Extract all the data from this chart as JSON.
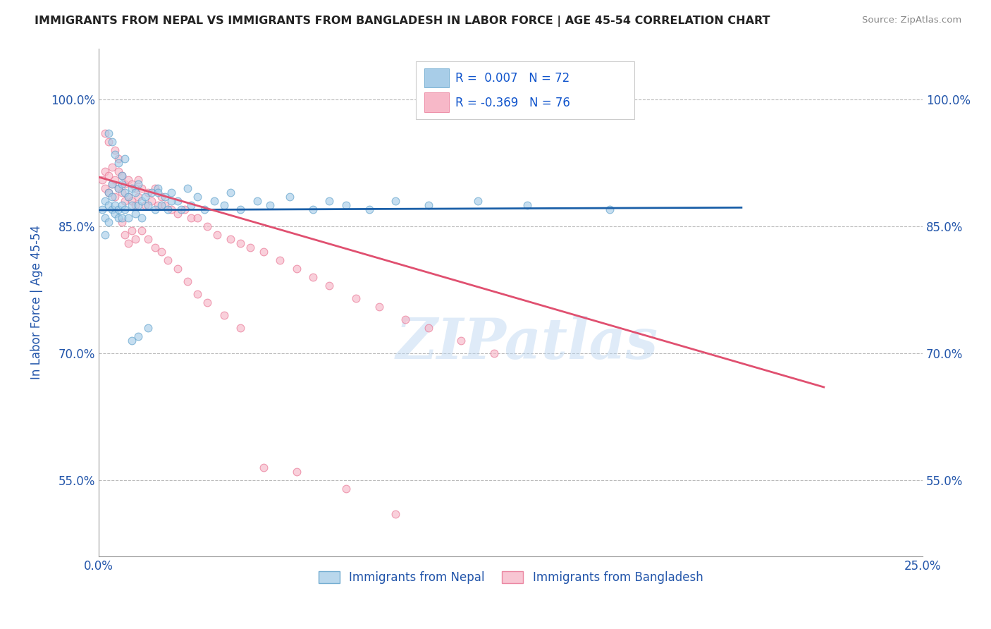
{
  "title": "IMMIGRANTS FROM NEPAL VS IMMIGRANTS FROM BANGLADESH IN LABOR FORCE | AGE 45-54 CORRELATION CHART",
  "source": "Source: ZipAtlas.com",
  "ylabel": "In Labor Force | Age 45-54",
  "xlim": [
    0.0,
    0.25
  ],
  "ylim": [
    0.46,
    1.06
  ],
  "ytick_positions": [
    0.55,
    0.7,
    0.85,
    1.0
  ],
  "ytick_labels": [
    "55.0%",
    "70.0%",
    "85.0%",
    "100.0%"
  ],
  "nepal_color": "#a8cde8",
  "nepal_edge": "#5a9ec9",
  "bangladesh_color": "#f7b8c8",
  "bangladesh_edge": "#e87090",
  "nepal_R": 0.007,
  "nepal_N": 72,
  "bangladesh_R": -0.369,
  "bangladesh_N": 76,
  "nepal_trend_x": [
    0.0,
    0.195
  ],
  "nepal_trend_y": [
    0.869,
    0.872
  ],
  "bangladesh_trend_x": [
    0.0,
    0.22
  ],
  "bangladesh_trend_y": [
    0.908,
    0.66
  ],
  "legend_nepal": "Immigrants from Nepal",
  "legend_bangladesh": "Immigrants from Bangladesh",
  "watermark": "ZIPatlas",
  "background_color": "#ffffff",
  "grid_color": "#bbbbbb",
  "title_color": "#222222",
  "axis_label_color": "#2255aa",
  "r_value_color": "#1155cc",
  "nepal_scatter_x": [
    0.001,
    0.002,
    0.002,
    0.003,
    0.003,
    0.003,
    0.004,
    0.004,
    0.004,
    0.005,
    0.005,
    0.006,
    0.006,
    0.006,
    0.007,
    0.007,
    0.007,
    0.008,
    0.008,
    0.009,
    0.009,
    0.01,
    0.01,
    0.011,
    0.011,
    0.012,
    0.012,
    0.013,
    0.013,
    0.014,
    0.015,
    0.016,
    0.017,
    0.018,
    0.019,
    0.02,
    0.021,
    0.022,
    0.024,
    0.025,
    0.027,
    0.028,
    0.03,
    0.032,
    0.035,
    0.038,
    0.04,
    0.043,
    0.048,
    0.052,
    0.058,
    0.065,
    0.07,
    0.075,
    0.082,
    0.09,
    0.1,
    0.115,
    0.13,
    0.155,
    0.002,
    0.003,
    0.004,
    0.005,
    0.006,
    0.007,
    0.008,
    0.01,
    0.012,
    0.015,
    0.018,
    0.022
  ],
  "nepal_scatter_y": [
    0.87,
    0.88,
    0.86,
    0.89,
    0.875,
    0.855,
    0.9,
    0.87,
    0.885,
    0.875,
    0.865,
    0.895,
    0.87,
    0.86,
    0.9,
    0.875,
    0.86,
    0.89,
    0.87,
    0.885,
    0.86,
    0.895,
    0.875,
    0.89,
    0.865,
    0.9,
    0.875,
    0.88,
    0.86,
    0.885,
    0.875,
    0.89,
    0.87,
    0.895,
    0.875,
    0.885,
    0.87,
    0.89,
    0.88,
    0.87,
    0.895,
    0.875,
    0.885,
    0.87,
    0.88,
    0.875,
    0.89,
    0.87,
    0.88,
    0.875,
    0.885,
    0.87,
    0.88,
    0.875,
    0.87,
    0.88,
    0.875,
    0.88,
    0.875,
    0.87,
    0.84,
    0.96,
    0.95,
    0.935,
    0.925,
    0.91,
    0.93,
    0.715,
    0.72,
    0.73,
    0.89,
    0.88
  ],
  "bangladesh_scatter_x": [
    0.001,
    0.002,
    0.002,
    0.003,
    0.003,
    0.004,
    0.004,
    0.005,
    0.005,
    0.006,
    0.006,
    0.007,
    0.007,
    0.008,
    0.008,
    0.009,
    0.009,
    0.01,
    0.01,
    0.011,
    0.011,
    0.012,
    0.012,
    0.013,
    0.014,
    0.015,
    0.016,
    0.017,
    0.018,
    0.019,
    0.02,
    0.022,
    0.024,
    0.026,
    0.028,
    0.03,
    0.033,
    0.036,
    0.04,
    0.043,
    0.046,
    0.05,
    0.055,
    0.06,
    0.065,
    0.07,
    0.078,
    0.085,
    0.093,
    0.1,
    0.11,
    0.12,
    0.002,
    0.003,
    0.005,
    0.006,
    0.007,
    0.008,
    0.009,
    0.01,
    0.011,
    0.013,
    0.015,
    0.017,
    0.019,
    0.021,
    0.024,
    0.027,
    0.03,
    0.033,
    0.038,
    0.043,
    0.05,
    0.06,
    0.075,
    0.09
  ],
  "bangladesh_scatter_y": [
    0.905,
    0.915,
    0.895,
    0.91,
    0.89,
    0.92,
    0.9,
    0.905,
    0.885,
    0.915,
    0.895,
    0.91,
    0.89,
    0.9,
    0.88,
    0.905,
    0.885,
    0.9,
    0.88,
    0.895,
    0.875,
    0.905,
    0.885,
    0.895,
    0.875,
    0.89,
    0.88,
    0.895,
    0.875,
    0.885,
    0.875,
    0.87,
    0.865,
    0.87,
    0.86,
    0.86,
    0.85,
    0.84,
    0.835,
    0.83,
    0.825,
    0.82,
    0.81,
    0.8,
    0.79,
    0.78,
    0.765,
    0.755,
    0.74,
    0.73,
    0.715,
    0.7,
    0.96,
    0.95,
    0.94,
    0.93,
    0.855,
    0.84,
    0.83,
    0.845,
    0.835,
    0.845,
    0.835,
    0.825,
    0.82,
    0.81,
    0.8,
    0.785,
    0.77,
    0.76,
    0.745,
    0.73,
    0.565,
    0.56,
    0.54,
    0.51
  ]
}
